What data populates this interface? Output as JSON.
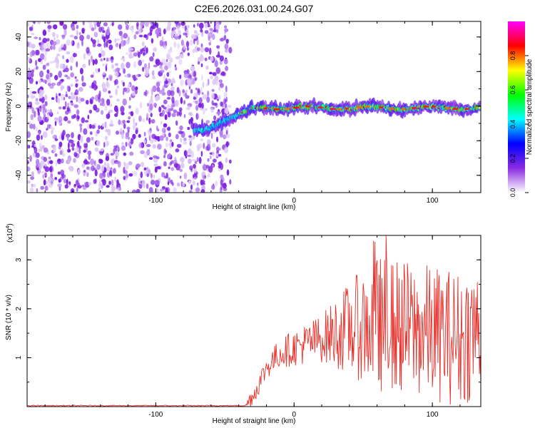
{
  "title": "C2E6.2026.031.00.24.G07",
  "chart_data": [
    {
      "type": "heatmap",
      "title": "C2E6.2026.031.00.24.G07",
      "xlabel": "Height of straight line (km)",
      "ylabel": "Frequency (Hz)",
      "xlim": [
        -193,
        135
      ],
      "ylim": [
        -50,
        49
      ],
      "xticks": [
        -100,
        0,
        100
      ],
      "yticks": [
        -40,
        -20,
        0,
        20,
        40
      ],
      "noise_region_x": [
        -193,
        -46
      ],
      "noise_region_y": [
        -50,
        49
      ],
      "transition_x": [
        -65,
        -30
      ],
      "start_frequency": -14,
      "track_frequency": -1,
      "colorbar": {
        "label": "Normalized spectral amplitude",
        "range": [
          0,
          1
        ],
        "ticks": [
          0.0,
          0.2,
          0.4,
          0.6,
          0.8
        ],
        "tick_labels": [
          "0.0",
          "0.2",
          "0.4",
          "0.6",
          "0.8"
        ],
        "colors": [
          "#ffffff",
          "#8a2be2",
          "#0000ff",
          "#00ffff",
          "#00ff00",
          "#ffff00",
          "#ff0000",
          "#ff00ff"
        ]
      }
    },
    {
      "type": "line",
      "xlabel": "Height of straight line (km)",
      "ylabel": "SNR (10 * v/v)",
      "scale_label": "(x10",
      "scale_exp": "4",
      "scale_close": ")",
      "xlim": [
        -193,
        135
      ],
      "ylim": [
        0,
        3.5
      ],
      "xticks": [
        -100,
        0,
        100
      ],
      "yticks": [
        1,
        2,
        3
      ],
      "color": "#e8302a",
      "key_points": [
        {
          "x": -193,
          "y": 0.02
        },
        {
          "x": -35,
          "y": 0.02
        },
        {
          "x": -28,
          "y": 0.3
        },
        {
          "x": -20,
          "y": 0.8
        },
        {
          "x": -10,
          "y": 1.1
        },
        {
          "x": 0,
          "y": 1.2
        },
        {
          "x": 10,
          "y": 1.3
        },
        {
          "x": 20,
          "y": 1.4
        },
        {
          "x": 30,
          "y": 1.5
        },
        {
          "x": 40,
          "y": 1.6
        },
        {
          "x": 60,
          "y": 1.7
        },
        {
          "x": 80,
          "y": 1.6
        },
        {
          "x": 100,
          "y": 1.5
        },
        {
          "x": 120,
          "y": 1.4
        },
        {
          "x": 135,
          "y": 1.6
        }
      ]
    }
  ]
}
